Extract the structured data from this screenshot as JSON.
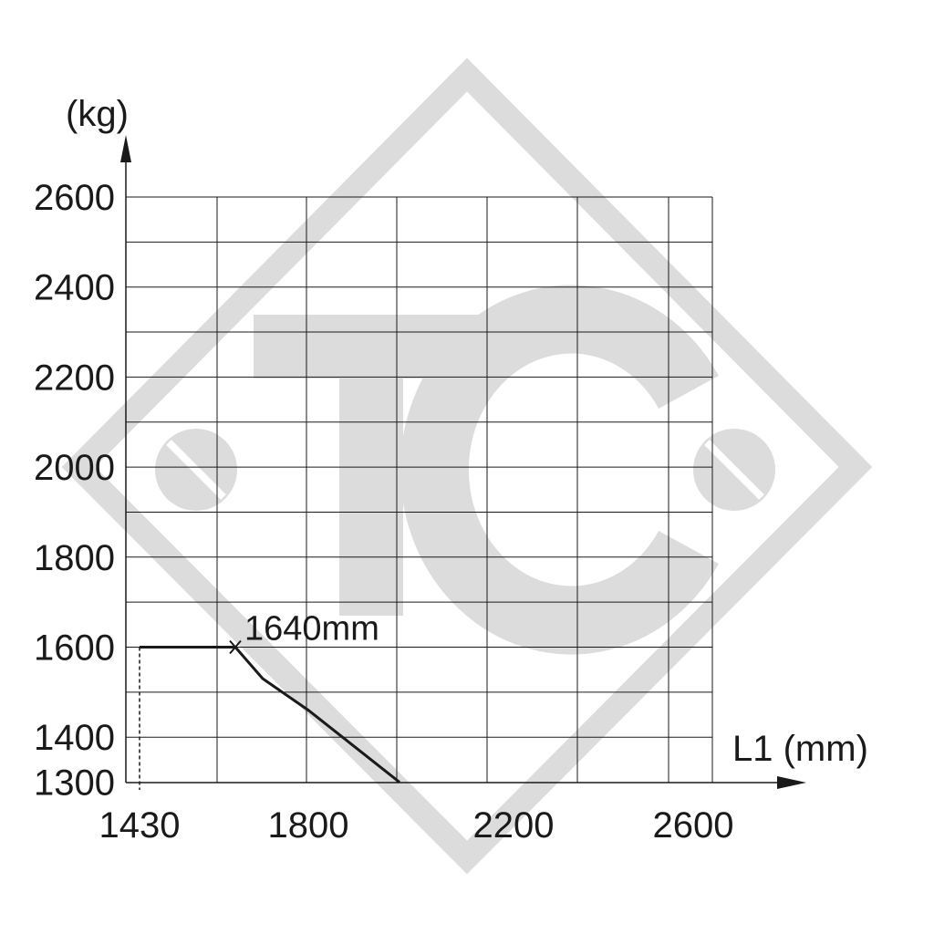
{
  "chart_data": {
    "type": "line",
    "title": "",
    "xlabel": "L1 (mm)",
    "ylabel": "(kg)",
    "x_ticks": [
      1430,
      1800,
      2200,
      2600
    ],
    "y_ticks": [
      1300,
      1400,
      1600,
      1800,
      2000,
      2200,
      2400,
      2600
    ],
    "xlim": [
      1400,
      2700
    ],
    "ylim": [
      1300,
      2600
    ],
    "grid": true,
    "series": [
      {
        "x": [
          1430,
          1640,
          1700,
          1800,
          1900,
          2000
        ],
        "y": [
          1600,
          1600,
          1530,
          1460,
          1380,
          1300
        ],
        "color": "#1a1a1a"
      }
    ],
    "annotations": [
      {
        "text": "1640mm",
        "x": 1640,
        "y": 1600
      }
    ],
    "watermark": "TC"
  }
}
